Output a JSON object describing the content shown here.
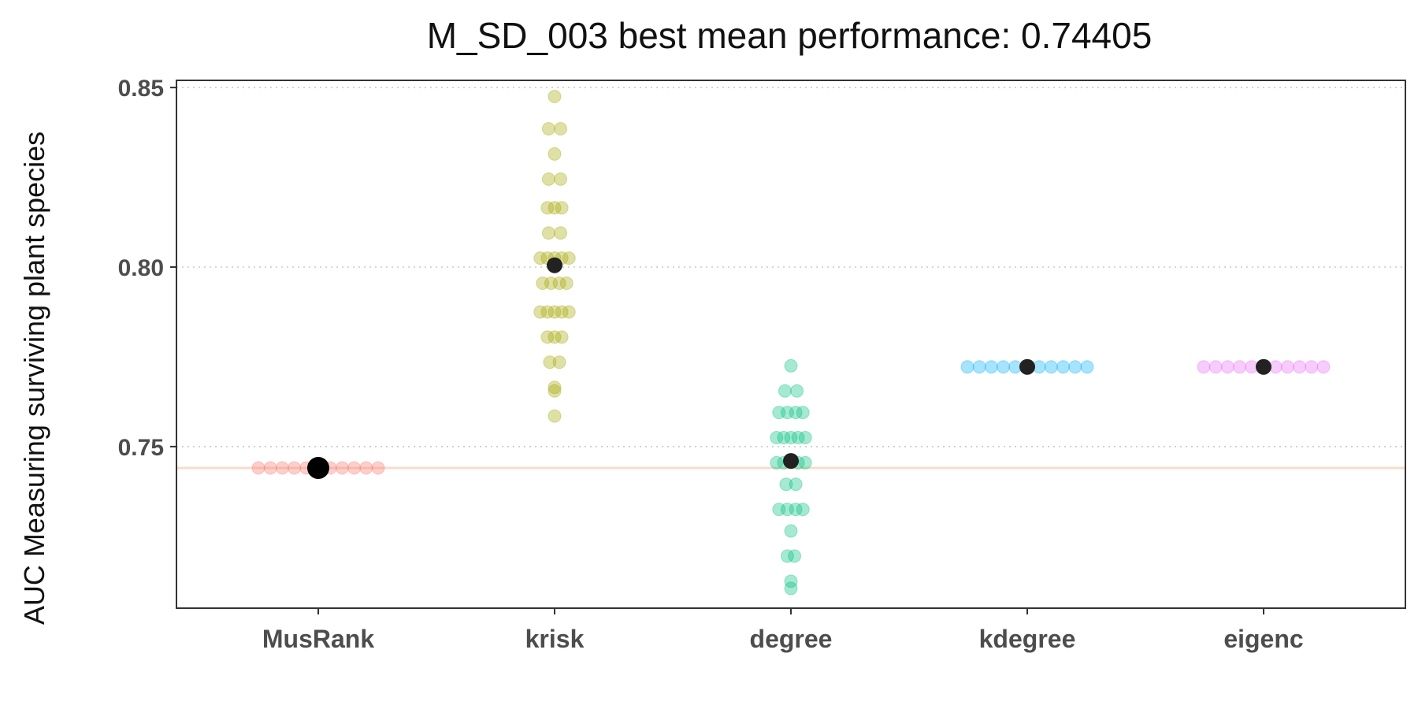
{
  "chart_data": {
    "type": "scatter",
    "title": "M_SD_003 best mean performance: 0.74405",
    "xlabel": "",
    "ylabel": "AUC Measuring surviving plant species",
    "categories": [
      "MusRank",
      "krisk",
      "degree",
      "kdegree",
      "eigenc"
    ],
    "ylim": [
      0.705,
      0.852
    ],
    "yticks": [
      0.75,
      0.8,
      0.85
    ],
    "ytick_labels": [
      "0.75",
      "0.80",
      "0.85"
    ],
    "grid": "horizontal dotted at y ticks",
    "reference_line": 0.74405,
    "colors": {
      "MusRank": "#F8766D",
      "krisk": "#A3A500",
      "degree": "#00BF7D",
      "kdegree": "#00B0F6",
      "eigenc": "#E76BF3",
      "mean": "#222222",
      "reference_line": "#F4DDCC",
      "grid": "#c8c8c8"
    },
    "series": [
      {
        "category": "MusRank",
        "mean": 0.74405,
        "points": [
          [
            -0.5,
            0.74405
          ],
          [
            -0.4,
            0.74405
          ],
          [
            -0.3,
            0.74405
          ],
          [
            -0.2,
            0.74405
          ],
          [
            -0.1,
            0.74405
          ],
          [
            0.0,
            0.74405
          ],
          [
            0.1,
            0.74405
          ],
          [
            0.2,
            0.74405
          ],
          [
            0.3,
            0.74405
          ],
          [
            0.4,
            0.74405
          ],
          [
            0.5,
            0.74405
          ]
        ]
      },
      {
        "category": "krisk",
        "mean": 0.8005,
        "points": [
          [
            0,
            0.8475
          ],
          [
            -0.05,
            0.8385
          ],
          [
            0.05,
            0.8385
          ],
          [
            0,
            0.8315
          ],
          [
            -0.05,
            0.8245
          ],
          [
            0.05,
            0.8245
          ],
          [
            -0.06,
            0.8165
          ],
          [
            0,
            0.8165
          ],
          [
            0.06,
            0.8165
          ],
          [
            -0.05,
            0.8095
          ],
          [
            0.05,
            0.8095
          ],
          [
            -0.12,
            0.8025
          ],
          [
            -0.06,
            0.8025
          ],
          [
            0,
            0.8025
          ],
          [
            0.06,
            0.8025
          ],
          [
            0.12,
            0.8025
          ],
          [
            -0.1,
            0.7955
          ],
          [
            -0.03,
            0.7955
          ],
          [
            0.04,
            0.7955
          ],
          [
            0.1,
            0.7955
          ],
          [
            -0.12,
            0.7875
          ],
          [
            -0.06,
            0.7875
          ],
          [
            0,
            0.7875
          ],
          [
            0.06,
            0.7875
          ],
          [
            0.12,
            0.7875
          ],
          [
            -0.06,
            0.7805
          ],
          [
            0,
            0.7805
          ],
          [
            0.06,
            0.7805
          ],
          [
            -0.04,
            0.7735
          ],
          [
            0.04,
            0.7735
          ],
          [
            0,
            0.7665
          ],
          [
            0,
            0.7655
          ],
          [
            0,
            0.7585
          ]
        ]
      },
      {
        "category": "degree",
        "mean": 0.746,
        "points": [
          [
            0,
            0.7725
          ],
          [
            -0.05,
            0.7655
          ],
          [
            0.05,
            0.7655
          ],
          [
            -0.1,
            0.7595
          ],
          [
            -0.03,
            0.7595
          ],
          [
            0.04,
            0.7595
          ],
          [
            0.1,
            0.7595
          ],
          [
            -0.12,
            0.7525
          ],
          [
            -0.06,
            0.7525
          ],
          [
            0,
            0.7525
          ],
          [
            0.06,
            0.7525
          ],
          [
            0.12,
            0.7525
          ],
          [
            -0.12,
            0.7455
          ],
          [
            -0.06,
            0.7455
          ],
          [
            0.06,
            0.7455
          ],
          [
            0.12,
            0.7455
          ],
          [
            -0.04,
            0.7395
          ],
          [
            0.04,
            0.7395
          ],
          [
            -0.1,
            0.7325
          ],
          [
            -0.03,
            0.7325
          ],
          [
            0.04,
            0.7325
          ],
          [
            0.1,
            0.7325
          ],
          [
            0,
            0.7265
          ],
          [
            -0.03,
            0.7195
          ],
          [
            0.03,
            0.7195
          ],
          [
            0,
            0.7125
          ],
          [
            0,
            0.7105
          ]
        ]
      },
      {
        "category": "kdegree",
        "mean": 0.7722,
        "points": [
          [
            -0.5,
            0.7722
          ],
          [
            -0.4,
            0.7722
          ],
          [
            -0.3,
            0.7722
          ],
          [
            -0.2,
            0.7722
          ],
          [
            -0.1,
            0.7722
          ],
          [
            0.0,
            0.7722
          ],
          [
            0.1,
            0.7722
          ],
          [
            0.2,
            0.7722
          ],
          [
            0.3,
            0.7722
          ],
          [
            0.4,
            0.7722
          ],
          [
            0.5,
            0.7722
          ]
        ]
      },
      {
        "category": "eigenc",
        "mean": 0.7722,
        "points": [
          [
            -0.5,
            0.7722
          ],
          [
            -0.4,
            0.7722
          ],
          [
            -0.3,
            0.7722
          ],
          [
            -0.2,
            0.7722
          ],
          [
            -0.1,
            0.7722
          ],
          [
            0.0,
            0.7722
          ],
          [
            0.1,
            0.7722
          ],
          [
            0.2,
            0.7722
          ],
          [
            0.3,
            0.7722
          ],
          [
            0.4,
            0.7722
          ],
          [
            0.5,
            0.7722
          ]
        ]
      }
    ]
  }
}
